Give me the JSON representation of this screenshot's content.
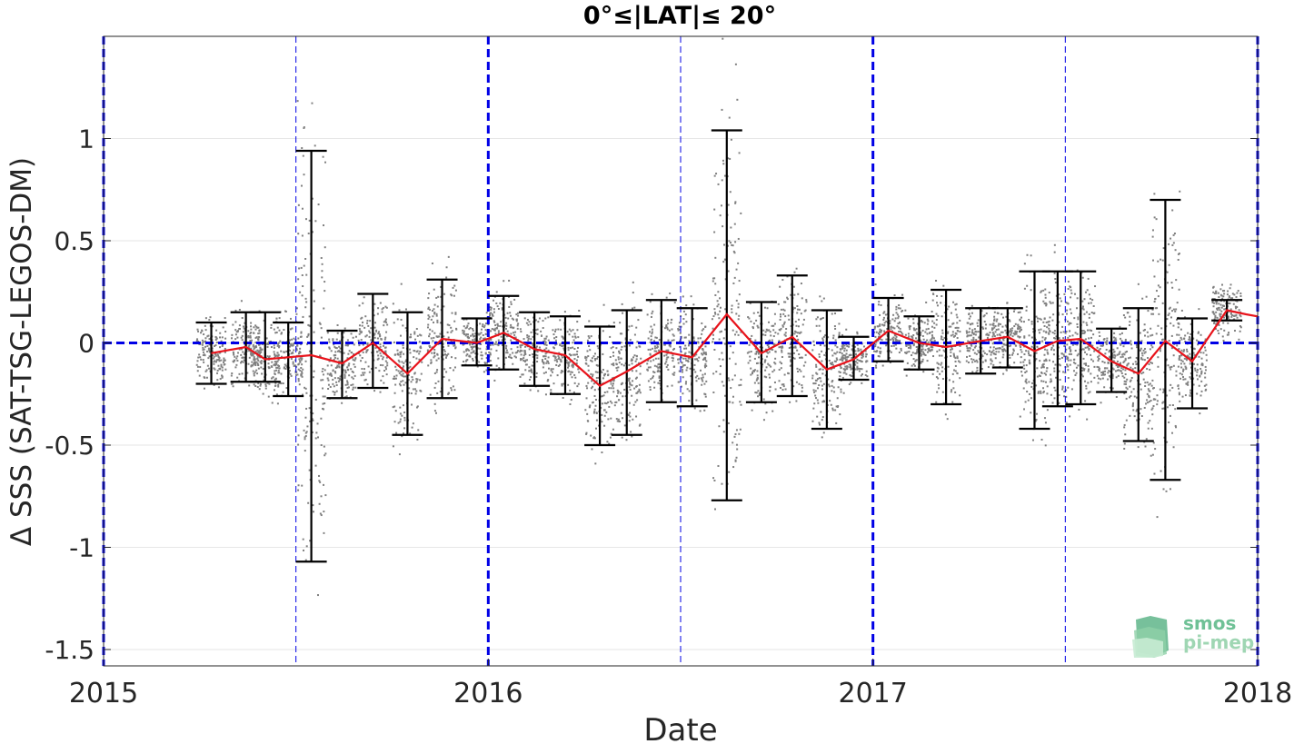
{
  "chart_data": {
    "type": "scatter",
    "title": "0°≤|LAT|≤ 20°",
    "xlabel": "Date",
    "ylabel": "Δ SSS (SAT-TSG-LEGOS-DM)",
    "xlim": [
      2015.0,
      2018.0
    ],
    "ylim": [
      -1.58,
      1.5
    ],
    "x_ticks": [
      {
        "value": 2015,
        "label": "2015"
      },
      {
        "value": 2016,
        "label": "2016"
      },
      {
        "value": 2017,
        "label": "2017"
      },
      {
        "value": 2018,
        "label": "2018"
      }
    ],
    "y_ticks": [
      {
        "value": 1,
        "label": "1"
      },
      {
        "value": 0.5,
        "label": "0.5"
      },
      {
        "value": 0,
        "label": "0"
      },
      {
        "value": -0.5,
        "label": "-0.5"
      },
      {
        "value": -1,
        "label": "-1"
      },
      {
        "value": -1.5,
        "label": "-1.5"
      }
    ],
    "grid": true,
    "year_lines": [
      2015.0,
      2016.0,
      2017.0,
      2018.0
    ],
    "half_year_lines": [
      2015.5,
      2016.5,
      2017.5
    ],
    "zero_line": 0,
    "colors": {
      "points": "#808080",
      "mean_line": "#e8131b",
      "error_bars": "#000000",
      "reference_lines": "#0000e6",
      "grid": "#e6e6e6"
    },
    "series": [
      {
        "name": "",
        "x": [
          2015.28,
          2015.37,
          2015.42,
          2015.48,
          2015.54,
          2015.62,
          2015.7,
          2015.79,
          2015.88,
          2015.97,
          2016.04,
          2016.12,
          2016.2,
          2016.29,
          2016.36,
          2016.45,
          2016.53,
          2016.62,
          2016.71,
          2016.79,
          2016.88,
          2016.95,
          2017.04,
          2017.12,
          2017.19,
          2017.28,
          2017.35,
          2017.42,
          2017.48,
          2017.54,
          2017.62,
          2017.69,
          2017.76,
          2017.83,
          2017.92,
          2017.97,
          2018.0
        ],
        "mean": [
          -0.05,
          -0.02,
          -0.08,
          -0.07,
          -0.06,
          -0.1,
          0.0,
          -0.15,
          0.02,
          0.0,
          0.05,
          -0.03,
          -0.06,
          -0.21,
          -0.14,
          -0.04,
          -0.07,
          0.14,
          -0.05,
          0.03,
          -0.13,
          -0.08,
          0.06,
          0.0,
          -0.02,
          0.01,
          0.03,
          -0.04,
          0.01,
          0.02,
          -0.09,
          -0.15,
          0.01,
          -0.09,
          0.16,
          0.14,
          0.13
        ],
        "err_low": [
          -0.2,
          -0.19,
          -0.19,
          -0.26,
          -1.07,
          -0.27,
          -0.22,
          -0.45,
          -0.27,
          -0.11,
          -0.13,
          -0.21,
          -0.25,
          -0.5,
          -0.45,
          -0.29,
          -0.31,
          -0.77,
          -0.29,
          -0.26,
          -0.42,
          -0.18,
          -0.09,
          -0.13,
          -0.3,
          -0.15,
          -0.12,
          -0.42,
          -0.31,
          -0.3,
          -0.24,
          -0.48,
          -0.67,
          -0.32,
          0.11,
          null,
          null
        ],
        "err_high": [
          0.1,
          0.15,
          0.15,
          0.1,
          0.94,
          0.06,
          0.24,
          0.15,
          0.31,
          0.12,
          0.23,
          0.15,
          0.13,
          0.08,
          0.16,
          0.21,
          0.17,
          1.04,
          0.2,
          0.33,
          0.16,
          0.03,
          0.22,
          0.13,
          0.26,
          0.17,
          0.17,
          0.35,
          0.35,
          0.35,
          0.07,
          0.17,
          0.7,
          0.12,
          0.21,
          null,
          null
        ]
      }
    ]
  },
  "logo": {
    "line1": "smos",
    "line2": "pi-mep"
  }
}
